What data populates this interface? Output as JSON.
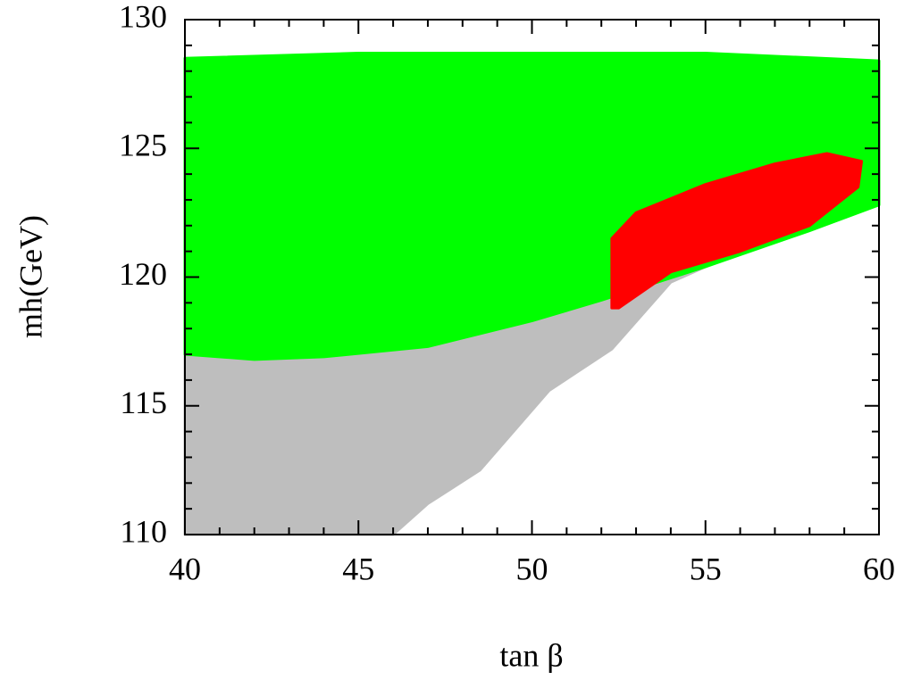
{
  "chart_data": {
    "type": "region",
    "xlabel": "tan β",
    "ylabel": "mh(GeV)",
    "xlim": [
      40,
      60
    ],
    "xticks": [
      40,
      45,
      50,
      55,
      60
    ],
    "ylim": [
      110,
      130
    ],
    "yticks": [
      110,
      115,
      120,
      125,
      130
    ],
    "series": [
      {
        "color": "#bebebe",
        "x": [
          40,
          45,
          50,
          55,
          59.5,
          58,
          56,
          54,
          52.3,
          50.5,
          48.5,
          47,
          46,
          43,
          40
        ],
        "values": [
          117,
          117,
          118.5,
          120.5,
          123.5,
          122.3,
          121,
          119.8,
          117.2,
          115.6,
          112.5,
          111.2,
          110,
          110,
          110
        ]
      },
      {
        "color": "#00ff00",
        "x": [
          40,
          45,
          50,
          55,
          60,
          60,
          58,
          55,
          52,
          50,
          47,
          44,
          42,
          40
        ],
        "values": [
          128.5,
          128.7,
          128.7,
          128.7,
          128.4,
          122.8,
          121.8,
          120.4,
          119.1,
          118.3,
          117.3,
          116.9,
          116.8,
          117
        ]
      },
      {
        "color": "#ff0000",
        "x": [
          52.3,
          53,
          55,
          57,
          58.5,
          59.5,
          59.4,
          58,
          56,
          54,
          52.5,
          52.3
        ],
        "values": [
          121.5,
          122.5,
          123.6,
          124.4,
          124.8,
          124.5,
          123.5,
          122,
          121,
          120.2,
          118.8,
          118.8
        ]
      }
    ]
  }
}
